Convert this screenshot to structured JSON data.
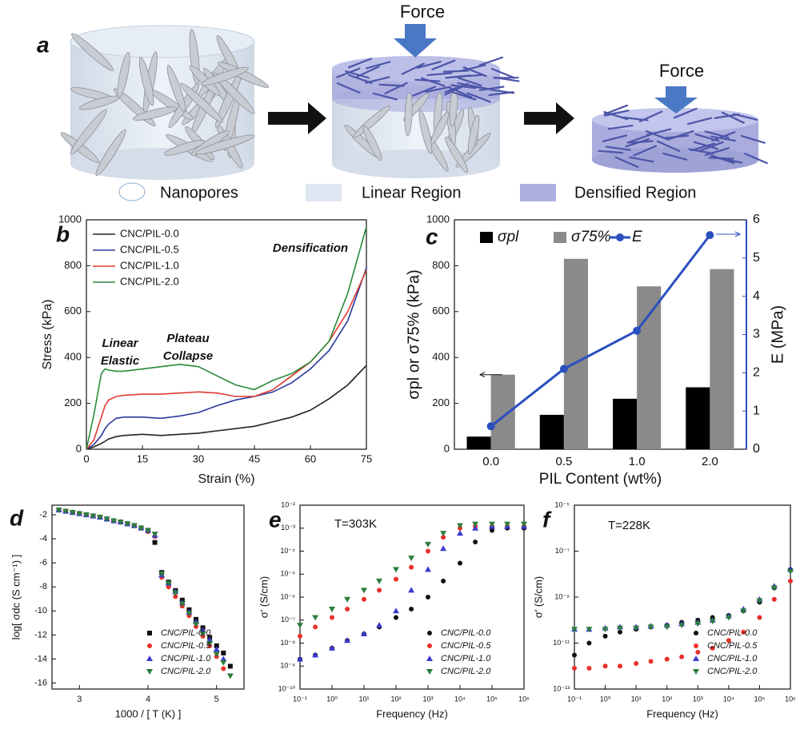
{
  "diagram": {
    "label": "a",
    "force_labels": [
      "Force",
      "Force"
    ],
    "legend": [
      "Nanopores",
      "Linear Region",
      "Densified Region"
    ]
  },
  "chart_data": [
    {
      "type": "line",
      "label": "b",
      "xlabel": "Strain (%)",
      "ylabel": "Stress (kPa)",
      "legend": "upper left",
      "annotations": [
        "Linear",
        "Elastic",
        "Plateau",
        "Collapse",
        "Densification"
      ],
      "x": [
        0,
        2,
        4,
        5,
        6,
        8,
        10,
        15,
        20,
        25,
        30,
        35,
        40,
        45,
        50,
        55,
        60,
        65,
        70,
        75
      ],
      "series": [
        {
          "name": "CNC/PIL-0.0",
          "color": "#222222",
          "values": [
            0,
            10,
            25,
            35,
            45,
            55,
            60,
            65,
            60,
            65,
            70,
            80,
            90,
            100,
            120,
            140,
            170,
            220,
            280,
            365
          ]
        },
        {
          "name": "CNC/PIL-0.5",
          "color": "#2b3a9e",
          "values": [
            0,
            20,
            60,
            90,
            110,
            135,
            140,
            140,
            135,
            145,
            160,
            190,
            215,
            230,
            250,
            290,
            350,
            430,
            560,
            790
          ]
        },
        {
          "name": "CNC/PIL-1.0",
          "color": "#e03a2f",
          "values": [
            0,
            40,
            140,
            190,
            215,
            230,
            235,
            240,
            240,
            245,
            250,
            245,
            230,
            230,
            260,
            320,
            380,
            470,
            600,
            780
          ]
        },
        {
          "name": "CNC/PIL-2.0",
          "color": "#2a8a3a",
          "values": [
            0,
            150,
            330,
            350,
            345,
            340,
            340,
            350,
            360,
            370,
            360,
            320,
            280,
            260,
            300,
            330,
            380,
            470,
            680,
            970
          ]
        }
      ],
      "xlim": [
        0,
        75
      ],
      "xticks": [
        0,
        15,
        30,
        45,
        60,
        75
      ],
      "ylim": [
        0,
        1000
      ],
      "yticks": [
        0,
        200,
        400,
        600,
        800,
        1000
      ]
    },
    {
      "type": "bar",
      "label": "c",
      "xlabel": "PIL Content (wt%)",
      "ylabel": "σpl or σ75% (kPa)",
      "y2label": "E (MPa)",
      "legend": "upper left",
      "categories": [
        "0.0",
        "0.5",
        "1.0",
        "2.0"
      ],
      "series": [
        {
          "name": "σpl",
          "color": "#000000",
          "values": [
            55,
            150,
            220,
            270
          ]
        },
        {
          "name": "σ75%",
          "color": "#8a8a8a",
          "values": [
            325,
            830,
            710,
            785
          ]
        },
        {
          "name": "E",
          "color": "#2a4fbf",
          "axis": "y2",
          "values": [
            0.6,
            2.1,
            3.1,
            5.6
          ]
        }
      ],
      "ylim": [
        0,
        1000
      ],
      "yticks": [
        0,
        200,
        400,
        600,
        800,
        1000
      ],
      "y2lim": [
        0,
        6
      ],
      "y2ticks": [
        0,
        1,
        2,
        3,
        4,
        5,
        6
      ]
    },
    {
      "type": "scatter",
      "label": "d",
      "xlabel": "1000 / [ T (K) ]",
      "ylabel": "log[ σdc (S cm⁻¹) ]",
      "legend": "lower right",
      "x": [
        2.7,
        2.8,
        2.9,
        3.0,
        3.1,
        3.2,
        3.3,
        3.4,
        3.5,
        3.6,
        3.7,
        3.8,
        3.9,
        4.0,
        4.1,
        4.2,
        4.3,
        4.4,
        4.5,
        4.6,
        4.7,
        4.8,
        4.9,
        5.0,
        5.1,
        5.2
      ],
      "series": [
        {
          "name": "CNC/PIL-0.0",
          "color": "#111111",
          "marker": "square",
          "values": [
            -1.6,
            -1.7,
            -1.8,
            -1.9,
            -2.0,
            -2.1,
            -2.2,
            -2.35,
            -2.5,
            -2.6,
            -2.75,
            -2.9,
            -3.1,
            -3.3,
            -4.3,
            -6.8,
            -7.6,
            -8.3,
            -9.1,
            -9.9,
            -10.7,
            -11.4,
            -12.2,
            -12.9,
            -13.5,
            -14.6
          ]
        },
        {
          "name": "CNC/PIL-0.5",
          "color": "#e8302a",
          "marker": "circle",
          "values": [
            -1.6,
            -1.7,
            -1.8,
            -1.9,
            -2.0,
            -2.1,
            -2.2,
            -2.35,
            -2.5,
            -2.6,
            -2.75,
            -2.9,
            -3.1,
            -3.4,
            -3.8,
            -7.2,
            -8.0,
            -8.8,
            -9.6,
            -10.4,
            -11.3,
            -12.1,
            -12.9,
            -13.8,
            -14.8,
            null
          ]
        },
        {
          "name": "CNC/PIL-1.0",
          "color": "#3a3ad0",
          "marker": "triangle",
          "values": [
            -1.6,
            -1.7,
            -1.8,
            -1.9,
            -2.0,
            -2.1,
            -2.2,
            -2.35,
            -2.5,
            -2.6,
            -2.75,
            -2.9,
            -3.1,
            -3.3,
            -3.7,
            -7.0,
            -7.7,
            -8.4,
            -9.3,
            -10.1,
            -10.9,
            -11.6,
            -12.4,
            -13.2,
            -14.0,
            null
          ]
        },
        {
          "name": "CNC/PIL-2.0",
          "color": "#2e7d3e",
          "marker": "triangle-down",
          "values": [
            -1.6,
            -1.7,
            -1.8,
            -1.9,
            -2.0,
            -2.1,
            -2.2,
            -2.35,
            -2.5,
            -2.6,
            -2.75,
            -2.9,
            -3.1,
            -3.3,
            -3.6,
            -6.9,
            -7.7,
            -8.5,
            -9.4,
            -10.2,
            -11.1,
            -11.9,
            -12.7,
            -13.6,
            -14.3,
            -15.4
          ]
        }
      ],
      "xlim": [
        2.6,
        5.4
      ],
      "xticks": [
        3,
        4,
        5
      ],
      "ylim": [
        -16.5,
        -1.2
      ],
      "yticks": [
        -2,
        -4,
        -6,
        -8,
        -10,
        -12,
        -14,
        -16
      ]
    },
    {
      "type": "scatter",
      "label": "e",
      "xlabel": "Frequency (Hz)",
      "ylabel": "σ' (S/cm)",
      "legend": "lower right",
      "xscale": "log",
      "yscale": "log",
      "annotations": [
        "T=303K"
      ],
      "x": [
        0.1,
        0.3,
        1,
        3,
        10,
        30,
        100,
        300,
        1000,
        3000,
        10000,
        30000,
        100000,
        300000,
        1000000
      ],
      "series": [
        {
          "name": "CNC/PIL-0.0",
          "color": "#111111",
          "marker": "circle",
          "values": [
            2e-09,
            3e-09,
            6e-09,
            1.3e-08,
            2.5e-08,
            5e-08,
            1.3e-07,
            3e-07,
            1e-06,
            5e-06,
            3e-05,
            0.00025,
            0.0008,
            0.001,
            0.001
          ]
        },
        {
          "name": "CNC/PIL-0.5",
          "color": "#e8302a",
          "marker": "circle",
          "values": [
            2e-08,
            5e-08,
            1.3e-07,
            3e-07,
            8e-07,
            2e-06,
            6e-06,
            2e-05,
            0.0001,
            0.0004,
            0.001,
            0.0012,
            0.0012,
            0.0012,
            0.0012
          ]
        },
        {
          "name": "CNC/PIL-1.0",
          "color": "#3a3ad0",
          "marker": "triangle",
          "values": [
            2e-09,
            3e-09,
            6e-09,
            1.3e-08,
            2.5e-08,
            6e-08,
            2.5e-07,
            2e-06,
            1.6e-05,
            0.00013,
            0.0006,
            0.001,
            0.0012,
            0.0012,
            0.0012
          ]
        },
        {
          "name": "CNC/PIL-2.0",
          "color": "#2e7d3e",
          "marker": "triangle-down",
          "values": [
            6e-08,
            1.3e-07,
            3e-07,
            8e-07,
            2e-06,
            5e-06,
            1.6e-05,
            5e-05,
            0.0002,
            0.0006,
            0.0013,
            0.0015,
            0.0015,
            0.0015,
            0.0015
          ]
        }
      ],
      "xlim": [
        0.1,
        1000000
      ],
      "xticks": [
        {
          "value": 0.1,
          "label": "10⁻¹"
        },
        {
          "value": 1,
          "label": "10⁰"
        },
        {
          "value": 10,
          "label": "10¹"
        },
        {
          "value": 100,
          "label": "10²"
        },
        {
          "value": 1000,
          "label": "10³"
        },
        {
          "value": 10000,
          "label": "10⁴"
        },
        {
          "value": 100000,
          "label": "10⁵"
        },
        {
          "value": 1000000,
          "label": "10⁶"
        }
      ],
      "ylim": [
        1e-10,
        0.01
      ],
      "yticks": [
        {
          "value": 1e-10,
          "label": "10⁻¹⁰"
        },
        {
          "value": 1e-09,
          "label": "10⁻⁹"
        },
        {
          "value": 1e-08,
          "label": "10⁻⁸"
        },
        {
          "value": 1e-07,
          "label": "10⁻⁷"
        },
        {
          "value": 1e-06,
          "label": "10⁻⁶"
        },
        {
          "value": 1e-05,
          "label": "10⁻⁵"
        },
        {
          "value": 0.0001,
          "label": "10⁻⁴"
        },
        {
          "value": 0.001,
          "label": "10⁻³"
        },
        {
          "value": 0.01,
          "label": "10⁻²"
        }
      ]
    },
    {
      "type": "scatter",
      "label": "f",
      "xlabel": "Frequency (Hz)",
      "ylabel": "σ' (S/cm)",
      "legend": "lower right",
      "xscale": "log",
      "yscale": "log",
      "annotations": [
        "T=228K"
      ],
      "x": [
        0.1,
        0.3,
        1,
        3,
        10,
        30,
        100,
        300,
        1000,
        3000,
        10000,
        30000,
        100000,
        300000,
        1000000
      ],
      "series": [
        {
          "name": "CNC/PIL-0.0",
          "color": "#111111",
          "marker": "circle",
          "values": [
            3e-12,
            1e-11,
            2e-11,
            3e-11,
            4e-11,
            5e-11,
            6e-11,
            8e-11,
            1e-10,
            1.3e-10,
            1.6e-10,
            2.5e-10,
            6e-10,
            2.5e-09,
            1.6e-08
          ]
        },
        {
          "name": "CNC/PIL-0.5",
          "color": "#e8302a",
          "marker": "circle",
          "values": [
            8e-13,
            8e-13,
            1e-12,
            1e-12,
            1.3e-12,
            1.6e-12,
            2e-12,
            2.5e-12,
            4e-12,
            6e-12,
            1.3e-11,
            3e-11,
            1.3e-10,
            8e-10,
            5e-09
          ]
        },
        {
          "name": "CNC/PIL-1.0",
          "color": "#3a3ad0",
          "marker": "triangle",
          "values": [
            4e-11,
            4e-11,
            4.5e-11,
            5e-11,
            5e-11,
            5.5e-11,
            6e-11,
            7e-11,
            8e-11,
            1e-10,
            1.5e-10,
            3e-10,
            8e-10,
            3e-09,
            1.6e-08
          ]
        },
        {
          "name": "CNC/PIL-2.0",
          "color": "#2e7d3e",
          "marker": "triangle-down",
          "values": [
            4e-11,
            4e-11,
            4e-11,
            4.5e-11,
            4.5e-11,
            5e-11,
            5e-11,
            6e-11,
            7e-11,
            9e-11,
            1.3e-10,
            2.5e-10,
            7e-10,
            2.5e-09,
            1.3e-08
          ]
        }
      ],
      "xlim": [
        0.1,
        1000000
      ],
      "xticks": [
        {
          "value": 0.1,
          "label": "10⁻¹"
        },
        {
          "value": 1,
          "label": "10⁰"
        },
        {
          "value": 10,
          "label": "10¹"
        },
        {
          "value": 100,
          "label": "10²"
        },
        {
          "value": 1000,
          "label": "10³"
        },
        {
          "value": 10000,
          "label": "10⁴"
        },
        {
          "value": 100000,
          "label": "10⁵"
        },
        {
          "value": 1000000,
          "label": "10⁶"
        }
      ],
      "ylim": [
        1e-13,
        1e-05
      ],
      "yticks": [
        {
          "value": 1e-13,
          "label": "10⁻¹³"
        },
        {
          "value": 1e-11,
          "label": "10⁻¹¹"
        },
        {
          "value": 1e-09,
          "label": "10⁻⁹"
        },
        {
          "value": 1e-07,
          "label": "10⁻⁷"
        },
        {
          "value": 1e-05,
          "label": "10⁻⁵"
        }
      ]
    }
  ]
}
